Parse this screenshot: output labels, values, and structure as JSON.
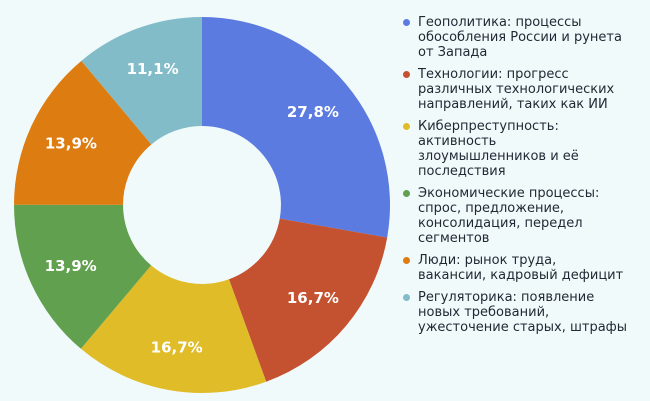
{
  "page": {
    "background_color": "#F1FAFB"
  },
  "chart_data": {
    "type": "pie",
    "subtype": "donut",
    "title": "",
    "start_angle_deg": 0,
    "direction": "clockwise",
    "inner_radius_ratio": 0.42,
    "label_radius_ratio": 0.77,
    "label_color": "#FFFFFF",
    "legend_position": "right",
    "legend_text_color": "#1F2833",
    "slices": [
      {
        "label": "Геополитика: процессы\nобособления России и рунета\nот Запада",
        "value": 27.8,
        "percent_label": "27,8%",
        "color": "#5B7BE0"
      },
      {
        "label": "Технологии: прогресс\nразличных технологических\nнаправлений, таких как ИИ",
        "value": 16.7,
        "percent_label": "16,7%",
        "color": "#C4512F"
      },
      {
        "label": "Киберпреступность:\nактивность\nзлоумышленников и её\nпоследствия",
        "value": 16.7,
        "percent_label": "16,7%",
        "color": "#E0BC29"
      },
      {
        "label": "Экономические процессы:\nспрос, предложение,\nконсолидация, передел\nсегментов",
        "value": 13.9,
        "percent_label": "13,9%",
        "color": "#61A04F"
      },
      {
        "label": "Люди: рынок труда,\nвакансии, кадровый дефицит",
        "value": 13.9,
        "percent_label": "13,9%",
        "color": "#DD7C11"
      },
      {
        "label": "Регуляторика: появление\nновых требований,\nужесточение старых, штрафы",
        "value": 11.1,
        "percent_label": "11,1%",
        "color": "#82BCC9"
      }
    ]
  }
}
